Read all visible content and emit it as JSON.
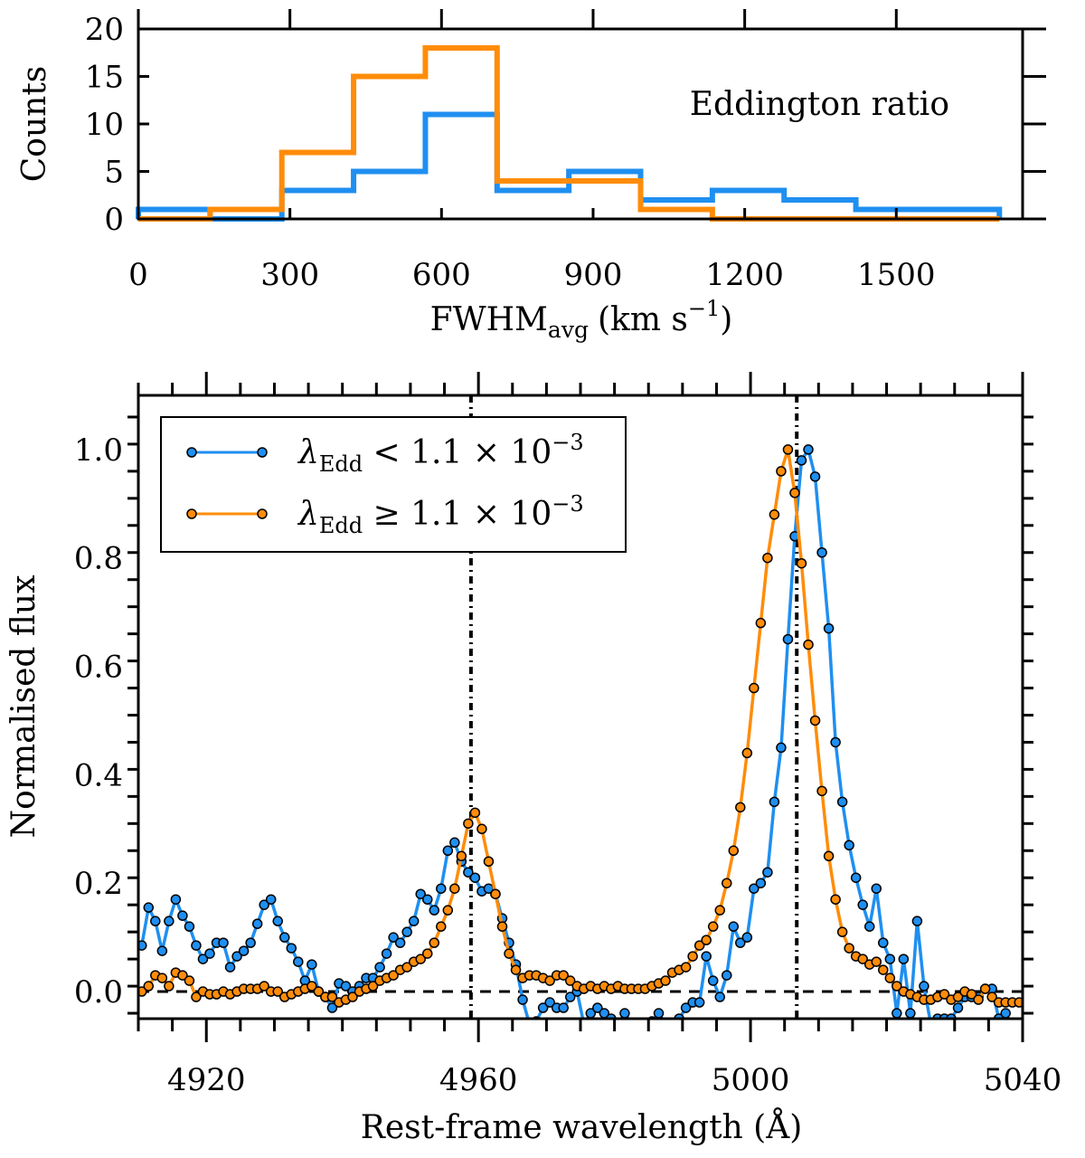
{
  "colors": {
    "low_edd": "#1f8ff0",
    "high_edd": "#ff8c0a",
    "axis": "#000000"
  },
  "chart_data": [
    {
      "type": "histogram",
      "annotation": "Eddington ratio",
      "xlabel": "FWHM",
      "xlabel_subscript": "avg",
      "xlabel_unit": "(km s",
      "xlabel_unit_sup": "−1",
      "xlabel_unit_close": ")",
      "ylabel": "Counts",
      "xlim": [
        0,
        1750
      ],
      "ylim": [
        0,
        20
      ],
      "xticks": [
        0,
        300,
        600,
        900,
        1200,
        1500
      ],
      "yticks": [
        0,
        5,
        10,
        15,
        20
      ],
      "bin_edges": [
        0,
        142,
        284,
        426,
        568,
        710,
        852,
        994,
        1136,
        1278,
        1420,
        1562,
        1704
      ],
      "series": [
        {
          "name": "λEdd < 1.1 × 10^-3",
          "color": "#1f8ff0",
          "counts": [
            1,
            0,
            3,
            5,
            11,
            3,
            5,
            2,
            3,
            2,
            1,
            1
          ]
        },
        {
          "name": "λEdd ≥ 1.1 × 10^-3",
          "color": "#ff8c0a",
          "counts": [
            0,
            1,
            7,
            15,
            18,
            4,
            4,
            1,
            0,
            0,
            0,
            0
          ]
        }
      ]
    },
    {
      "type": "line",
      "xlabel": "Rest-frame wavelength (Å)",
      "ylabel": "Normalised flux",
      "xlim": [
        4910,
        5040
      ],
      "ylim": [
        -0.05,
        1.1
      ],
      "xticks": [
        4920,
        4960,
        5000,
        5040
      ],
      "yticks": [
        0.0,
        0.2,
        0.4,
        0.6,
        0.8,
        1.0
      ],
      "xtick_labels": [
        "4920",
        "4960",
        "5000",
        "5040"
      ],
      "ytick_labels": [
        "0.0",
        "0.2",
        "0.4",
        "0.6",
        "0.8",
        "1.0"
      ],
      "vlines": [
        4958.9,
        5006.8
      ],
      "hline": 0.0,
      "legend": {
        "placement": "top-left",
        "entries": [
          {
            "symbol": "λ",
            "sub": "Edd",
            "rel": " < 1.1 × 10",
            "sup": "−3",
            "color": "#1f8ff0"
          },
          {
            "symbol": "λ",
            "sub": "Edd",
            "rel": " ≥ 1.1 × 10",
            "sup": "−3",
            "color": "#ff8c0a"
          }
        ]
      },
      "series": [
        {
          "name": "λEdd < 1.1 × 10^-3",
          "color": "#1f8ff0",
          "x": [
            4910.5,
            4911.5,
            4912.5,
            4913.5,
            4914.5,
            4915.5,
            4916.5,
            4917.5,
            4918.5,
            4919.5,
            4920.5,
            4921.5,
            4922.5,
            4923.5,
            4924.5,
            4925.5,
            4926.5,
            4927.5,
            4928.5,
            4929.5,
            4930.5,
            4931.5,
            4932.5,
            4933.5,
            4934.5,
            4935.5,
            4936.5,
            4937.5,
            4938.5,
            4939.5,
            4940.5,
            4941.5,
            4942.5,
            4943.5,
            4944.5,
            4945.5,
            4946.5,
            4947.5,
            4948.5,
            4949.5,
            4950.5,
            4951.5,
            4952.5,
            4953.5,
            4954.5,
            4955.5,
            4956.5,
            4957.5,
            4958.5,
            4959.5,
            4960.5,
            4961.5,
            4962.5,
            4963.5,
            4964.5,
            4965.5,
            4966.5,
            4967.5,
            4968.5,
            4969.5,
            4970.5,
            4971.5,
            4972.5,
            4973.5,
            4974.5,
            4975.5,
            4976.5,
            4977.5,
            4978.5,
            4979.5,
            4980.5,
            4981.5,
            4982.5,
            4983.5,
            4984.5,
            4985.5,
            4986.5,
            4987.5,
            4988.5,
            4989.5,
            4990.5,
            4991.5,
            4992.5,
            4993.5,
            4994.5,
            4995.5,
            4996.5,
            4997.5,
            4998.5,
            4999.5,
            5000.5,
            5001.5,
            5002.5,
            5003.5,
            5004.5,
            5005.5,
            5006.5,
            5007.5,
            5008.5,
            5009.5,
            5010.5,
            5011.5,
            5012.5,
            5013.5,
            5014.5,
            5015.5,
            5016.5,
            5017.5,
            5018.5,
            5019.5,
            5020.5,
            5021.5,
            5022.5,
            5023.5,
            5024.5,
            5025.5,
            5026.5,
            5027.5,
            5028.5,
            5029.5,
            5030.5,
            5031.5,
            5032.5,
            5033.5,
            5034.5,
            5035.5,
            5036.5,
            5037.5,
            5038.5,
            5039.5
          ],
          "y": [
            0.085,
            0.155,
            0.13,
            0.075,
            0.13,
            0.17,
            0.14,
            0.12,
            0.085,
            0.06,
            0.07,
            0.09,
            0.09,
            0.045,
            0.065,
            0.075,
            0.09,
            0.125,
            0.16,
            0.17,
            0.13,
            0.1,
            0.08,
            0.055,
            0.02,
            0.05,
            0.0,
            -0.01,
            -0.03,
            0.015,
            0.01,
            0.0,
            0.01,
            0.025,
            0.025,
            0.045,
            0.07,
            0.1,
            0.09,
            0.11,
            0.13,
            0.18,
            0.17,
            0.15,
            0.19,
            0.26,
            0.275,
            0.24,
            0.22,
            0.21,
            0.185,
            0.19,
            0.18,
            0.135,
            0.09,
            0.05,
            -0.015,
            -0.06,
            -0.055,
            -0.03,
            -0.02,
            -0.03,
            -0.03,
            -0.01,
            0.0,
            -0.06,
            -0.04,
            -0.03,
            -0.04,
            -0.05,
            -0.06,
            -0.04,
            -0.06,
            -0.06,
            -0.06,
            -0.055,
            -0.04,
            -0.06,
            -0.07,
            -0.05,
            -0.03,
            -0.02,
            -0.02,
            0.065,
            0.02,
            -0.01,
            0.03,
            0.12,
            0.09,
            0.1,
            0.19,
            0.2,
            0.22,
            0.35,
            0.45,
            0.65,
            0.84,
            0.98,
            1.0,
            0.95,
            0.81,
            0.67,
            0.46,
            0.35,
            0.27,
            0.21,
            0.16,
            0.12,
            0.19,
            0.09,
            0.06,
            -0.04,
            0.06,
            -0.04,
            0.13,
            0.01,
            -0.06,
            -0.05,
            -0.05,
            -0.05,
            -0.03,
            -0.01,
            -0.01,
            -0.01,
            0.005,
            0.005,
            -0.05,
            -0.04,
            -0.08,
            -0.06
          ]
        },
        {
          "name": "λEdd ≥ 1.1 × 10^-3",
          "color": "#ff8c0a",
          "x": [
            4910.5,
            4911.5,
            4912.5,
            4913.5,
            4914.5,
            4915.5,
            4916.5,
            4917.5,
            4918.5,
            4919.5,
            4920.5,
            4921.5,
            4922.5,
            4923.5,
            4924.5,
            4925.5,
            4926.5,
            4927.5,
            4928.5,
            4929.5,
            4930.5,
            4931.5,
            4932.5,
            4933.5,
            4934.5,
            4935.5,
            4936.5,
            4937.5,
            4938.5,
            4939.5,
            4940.5,
            4941.5,
            4942.5,
            4943.5,
            4944.5,
            4945.5,
            4946.5,
            4947.5,
            4948.5,
            4949.5,
            4950.5,
            4951.5,
            4952.5,
            4953.5,
            4954.5,
            4955.5,
            4956.5,
            4957.5,
            4958.5,
            4959.5,
            4960.5,
            4961.5,
            4962.5,
            4963.5,
            4964.5,
            4965.5,
            4966.5,
            4967.5,
            4968.5,
            4969.5,
            4970.5,
            4971.5,
            4972.5,
            4973.5,
            4974.5,
            4975.5,
            4976.5,
            4977.5,
            4978.5,
            4979.5,
            4980.5,
            4981.5,
            4982.5,
            4983.5,
            4984.5,
            4985.5,
            4986.5,
            4987.5,
            4988.5,
            4989.5,
            4990.5,
            4991.5,
            4992.5,
            4993.5,
            4994.5,
            4995.5,
            4996.5,
            4997.5,
            4998.5,
            4999.5,
            5000.5,
            5001.5,
            5002.5,
            5003.5,
            5004.5,
            5005.5,
            5006.5,
            5007.5,
            5008.5,
            5009.5,
            5010.5,
            5011.5,
            5012.5,
            5013.5,
            5014.5,
            5015.5,
            5016.5,
            5017.5,
            5018.5,
            5019.5,
            5020.5,
            5021.5,
            5022.5,
            5023.5,
            5024.5,
            5025.5,
            5026.5,
            5027.5,
            5028.5,
            5029.5,
            5030.5,
            5031.5,
            5032.5,
            5033.5,
            5034.5,
            5035.5,
            5036.5,
            5037.5,
            5038.5,
            5039.5
          ],
          "y": [
            0.0,
            0.01,
            0.03,
            0.025,
            0.01,
            0.035,
            0.03,
            0.02,
            -0.01,
            0.0,
            -0.005,
            -0.005,
            0.0,
            -0.005,
            0.0,
            0.005,
            0.005,
            0.005,
            0.01,
            0.0,
            0.0,
            -0.01,
            -0.005,
            0.0,
            0.005,
            0.01,
            0.0,
            -0.01,
            -0.01,
            -0.02,
            -0.015,
            -0.01,
            0.0,
            0.005,
            0.01,
            0.02,
            0.025,
            0.03,
            0.04,
            0.045,
            0.055,
            0.06,
            0.07,
            0.09,
            0.12,
            0.15,
            0.19,
            0.25,
            0.31,
            0.33,
            0.3,
            0.24,
            0.18,
            0.12,
            0.07,
            0.04,
            0.025,
            0.03,
            0.03,
            0.025,
            0.02,
            0.03,
            0.03,
            0.02,
            0.01,
            0.005,
            0.01,
            0.005,
            0.01,
            0.005,
            0.01,
            0.005,
            0.005,
            0.005,
            0.005,
            0.01,
            0.015,
            0.02,
            0.035,
            0.04,
            0.045,
            0.065,
            0.085,
            0.095,
            0.12,
            0.15,
            0.2,
            0.26,
            0.34,
            0.44,
            0.56,
            0.68,
            0.8,
            0.88,
            0.96,
            1.0,
            0.92,
            0.79,
            0.64,
            0.5,
            0.37,
            0.25,
            0.17,
            0.11,
            0.08,
            0.065,
            0.06,
            0.05,
            0.055,
            0.04,
            0.025,
            0.01,
            0.0,
            -0.005,
            -0.01,
            -0.015,
            -0.015,
            -0.01,
            -0.005,
            -0.015,
            -0.01,
            0.0,
            -0.005,
            -0.015,
            0.005,
            -0.01,
            -0.02,
            -0.02,
            -0.02,
            -0.02
          ]
        }
      ]
    }
  ]
}
